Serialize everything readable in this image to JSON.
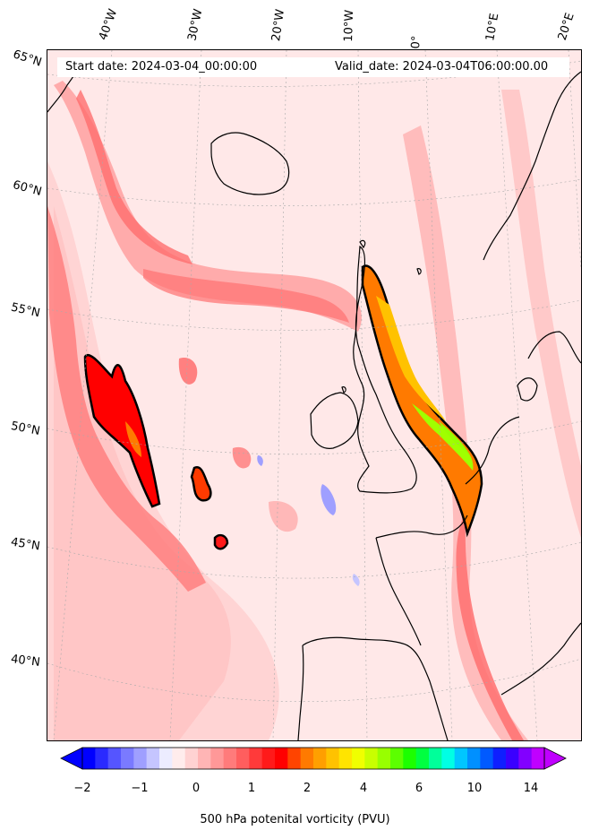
{
  "map": {
    "title_start": "Start date: 2024-03-04_00:00:00",
    "title_valid": "Valid_date: 2024-03-04T06:00:00.00",
    "lon_labels": [
      "40°W",
      "30°W",
      "20°W",
      "10°W",
      "0°",
      "10°E",
      "20°E"
    ],
    "lat_labels": [
      "65°N",
      "60°N",
      "55°N",
      "50°N",
      "45°N",
      "40°N"
    ],
    "variable": "500 hPa potential vorticity",
    "units": "PVU"
  },
  "colorbar": {
    "label": "500 hPa potenital vorticity (PVU)",
    "tick_labels": [
      "−2",
      "−1",
      "0",
      "1",
      "2",
      "4",
      "6",
      "10",
      "14"
    ],
    "colors": [
      "#0000ff",
      "#2a2aff",
      "#5555ff",
      "#7a7aff",
      "#9f9fff",
      "#c5c5ff",
      "#ececff",
      "#ffecec",
      "#ffd2d2",
      "#ffb5b5",
      "#ff9898",
      "#ff7b7b",
      "#ff5e5e",
      "#ff3a3a",
      "#ff1a1a",
      "#ff0000",
      "#ff4400",
      "#ff7a00",
      "#ff9f00",
      "#ffc200",
      "#ffe400",
      "#f0ff00",
      "#c8ff00",
      "#98ff00",
      "#5cff00",
      "#1cff00",
      "#00ff40",
      "#00ff9a",
      "#00ffe4",
      "#00c6ff",
      "#0090ff",
      "#005aff",
      "#0f1fff",
      "#3a00ff",
      "#8200ff",
      "#c000ff"
    ]
  }
}
